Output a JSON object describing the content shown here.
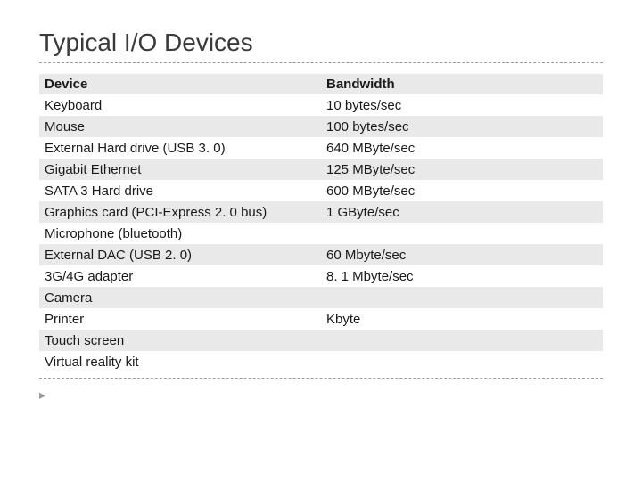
{
  "slide": {
    "title": "Typical I/O Devices",
    "title_fontsize": 28,
    "title_color": "#3a3a3a",
    "divider_color": "#9a9a9a",
    "bullet_glyph": "▸"
  },
  "table": {
    "type": "table",
    "columns": [
      "Device",
      "Bandwidth"
    ],
    "column_widths": [
      "50%",
      "50%"
    ],
    "header_bg": "#e9e9e9",
    "row_bg_odd": "#ffffff",
    "row_bg_even": "#e9e9e9",
    "text_color": "#1a1a1a",
    "fontsize": 15,
    "rows": [
      [
        "Keyboard",
        "10 bytes/sec"
      ],
      [
        "Mouse",
        "100 bytes/sec"
      ],
      [
        "External Hard drive (USB 3. 0)",
        "640 MByte/sec"
      ],
      [
        "Gigabit Ethernet",
        "125 MByte/sec"
      ],
      [
        "SATA 3 Hard drive",
        "600 MByte/sec"
      ],
      [
        "Graphics card (PCI-Express 2. 0 bus)",
        "1 GByte/sec"
      ],
      [
        "Microphone (bluetooth)",
        ""
      ],
      [
        "External DAC (USB 2. 0)",
        "60 Mbyte/sec"
      ],
      [
        "3G/4G adapter",
        "8. 1 Mbyte/sec"
      ],
      [
        "Camera",
        ""
      ],
      [
        "Printer",
        "Kbyte"
      ],
      [
        "Touch screen",
        ""
      ],
      [
        "Virtual reality kit",
        ""
      ]
    ]
  }
}
